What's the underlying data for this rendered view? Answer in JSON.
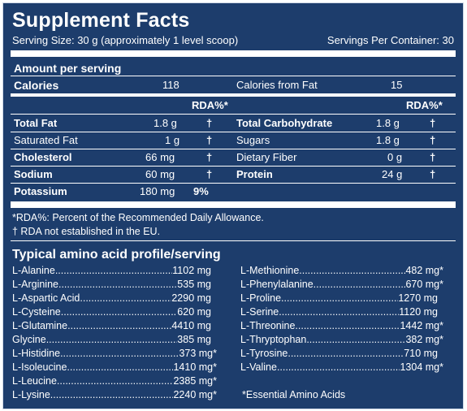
{
  "title": "Supplement Facts",
  "serving_size": "Serving Size: 30 g (approximately 1 level scoop)",
  "servings_per_container": "Servings Per Container: 30",
  "amount_per_serving": "Amount per serving",
  "calories": {
    "label": "Calories",
    "value": "118"
  },
  "calories_from_fat": {
    "label": "Calories from Fat",
    "value": "15"
  },
  "rda_header": "RDA%*",
  "left_nutrients": [
    {
      "label": "Total Fat",
      "amount": "1.8 g",
      "rda": "†"
    },
    {
      "label": "Saturated Fat",
      "amount": "1 g",
      "rda": "†"
    },
    {
      "label": "Cholesterol",
      "amount": "66 mg",
      "rda": "†"
    },
    {
      "label": "Sodium",
      "amount": "60 mg",
      "rda": "†"
    },
    {
      "label": "Potassium",
      "amount": "180 mg",
      "rda": "9%"
    }
  ],
  "right_nutrients": [
    {
      "label": "Total Carbohydrate",
      "amount": "1.8 g",
      "rda": "†"
    },
    {
      "label": "Sugars",
      "amount": "1.8 g",
      "rda": "†"
    },
    {
      "label": "Dietary Fiber",
      "amount": "0 g",
      "rda": "†"
    },
    {
      "label": "Protein",
      "amount": "24 g",
      "rda": "†"
    }
  ],
  "footnote_rda": "*RDA%: Percent of the Recommended Daily Allowance.",
  "footnote_dagger": "† RDA not established in the EU.",
  "amino_title": "Typical amino acid profile/serving",
  "amino_left": [
    {
      "name": "L-Alanine",
      "value": "1102 mg"
    },
    {
      "name": "L-Arginine",
      "value": "535 mg"
    },
    {
      "name": "L-Aspartic Acid",
      "value": "2290 mg"
    },
    {
      "name": "L-Cysteine",
      "value": "620 mg"
    },
    {
      "name": "L-Glutamine",
      "value": "4410 mg"
    },
    {
      "name": "Glycine",
      "value": "385 mg"
    },
    {
      "name": "L-Histidine",
      "value": "373 mg*"
    },
    {
      "name": "L-Isoleucine",
      "value": "1410 mg*"
    },
    {
      "name": "L-Leucine",
      "value": "2385 mg*"
    },
    {
      "name": "L-Lysine",
      "value": "2240 mg*"
    }
  ],
  "amino_right": [
    {
      "name": "L-Methionine",
      "value": "482 mg*"
    },
    {
      "name": "L-Phenylalanine",
      "value": "670 mg*"
    },
    {
      "name": "L-Proline",
      "value": "1270 mg"
    },
    {
      "name": "L-Serine",
      "value": "1120 mg"
    },
    {
      "name": "L-Threonine",
      "value": "1442 mg*"
    },
    {
      "name": "L-Thryptophan",
      "value": "382 mg*"
    },
    {
      "name": "L-Tyrosine",
      "value": "710 mg"
    },
    {
      "name": "L-Valine",
      "value": "1304 mg*"
    }
  ],
  "essential_note": "*Essential Amino Acids",
  "colors": {
    "background": "#1d3d6c",
    "text": "#ffffff"
  }
}
